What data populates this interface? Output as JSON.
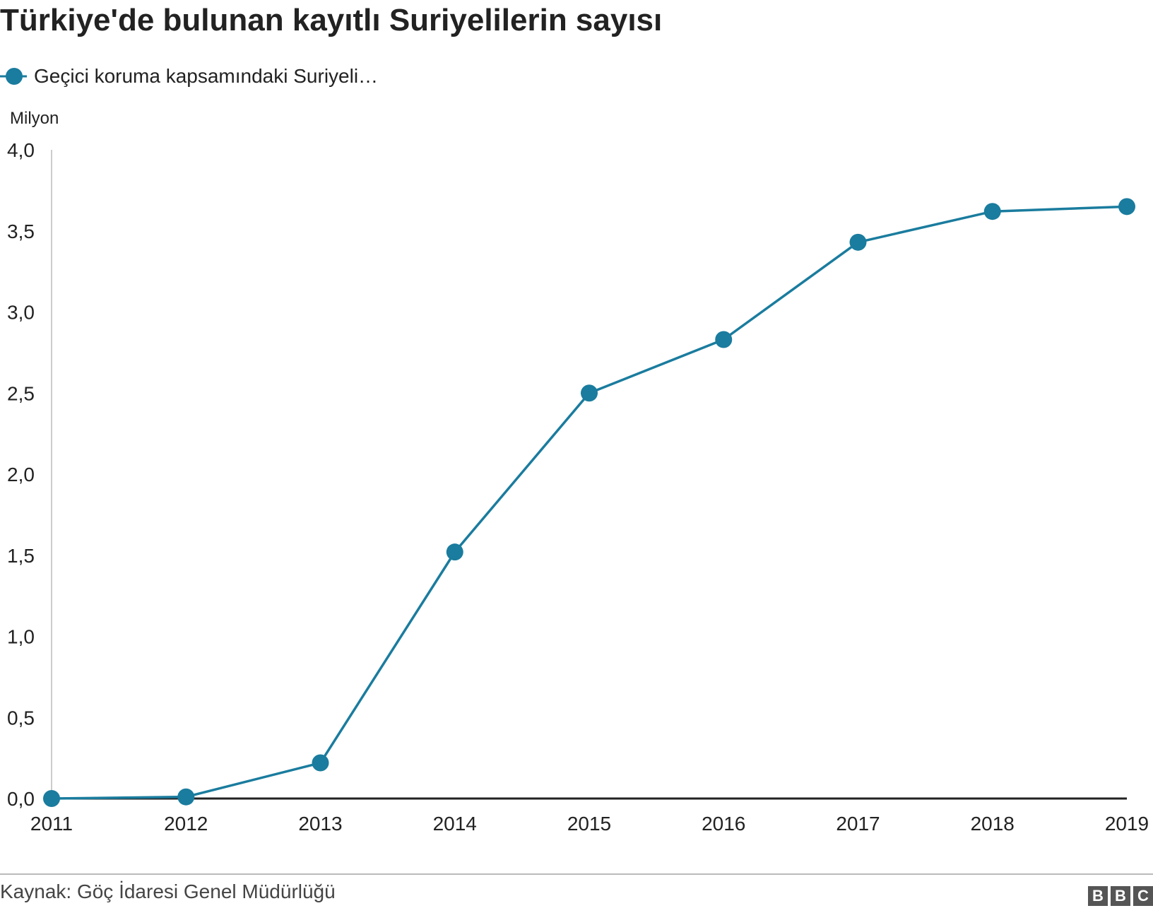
{
  "title": "Türkiye'de bulunan kayıtlı Suriyelilerin sayısı",
  "unit_label": "Milyon",
  "source": "Kaynak: Göç İdaresi Genel Müdürlüğü",
  "logo": [
    "B",
    "B",
    "C"
  ],
  "colors": {
    "series": "#1a7c9e",
    "axis": "#222222",
    "axis_left": "#cccccc"
  },
  "chart_data": {
    "type": "line",
    "ylabel": "Milyon",
    "ylim": [
      0,
      4
    ],
    "yticks": [
      "0,0",
      "0,5",
      "1,0",
      "1,5",
      "2,0",
      "2,5",
      "3,0",
      "3,5",
      "4,0"
    ],
    "ytick_values": [
      0,
      0.5,
      1.0,
      1.5,
      2.0,
      2.5,
      3.0,
      3.5,
      4.0
    ],
    "categories": [
      "2011",
      "2012",
      "2013",
      "2014",
      "2015",
      "2016",
      "2017",
      "2018",
      "2019"
    ],
    "series": [
      {
        "name": "Geçici koruma kapsamındaki Suriyeli…",
        "values": [
          0.0,
          0.01,
          0.22,
          1.52,
          2.5,
          2.83,
          3.43,
          3.62,
          3.65
        ]
      }
    ],
    "grid": false,
    "legend_position": "top-left"
  }
}
